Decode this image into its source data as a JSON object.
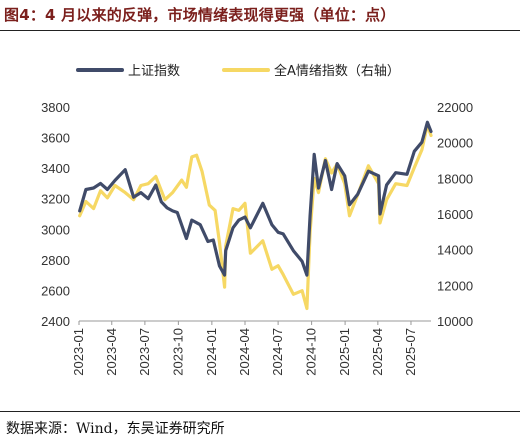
{
  "title": "图4：4 月以来的反弹，市场情绪表现得更强（单位：点）",
  "source": "数据来源：Wind，东吴证券研究所",
  "chart_data": {
    "type": "line",
    "title": "图4：4 月以来的反弹，市场情绪表现得更强（单位：点）",
    "xlabel": "",
    "ylabel": "",
    "x_ticks": [
      "2023-01",
      "2023-04",
      "2023-07",
      "2023-10",
      "2024-01",
      "2024-04",
      "2024-07",
      "2024-10",
      "2025-01",
      "2025-04",
      "2025-07"
    ],
    "x_range": [
      "2023-01-01",
      "2025-08-25"
    ],
    "y_left": {
      "lim": [
        2400,
        3800
      ],
      "ticks": [
        2400,
        2600,
        2800,
        3000,
        3200,
        3400,
        3600,
        3800
      ]
    },
    "y_right": {
      "lim": [
        10000,
        22000
      ],
      "ticks": [
        10000,
        12000,
        14000,
        16000,
        18000,
        20000,
        22000
      ]
    },
    "legend": {
      "position": "top"
    },
    "grid": false,
    "series": [
      {
        "name": "上证指数",
        "axis": "left",
        "color": "#404b69",
        "points": [
          [
            "2023-01-03",
            3120
          ],
          [
            "2023-01-20",
            3260
          ],
          [
            "2023-02-10",
            3270
          ],
          [
            "2023-03-01",
            3300
          ],
          [
            "2023-03-20",
            3260
          ],
          [
            "2023-04-10",
            3320
          ],
          [
            "2023-05-08",
            3390
          ],
          [
            "2023-05-31",
            3210
          ],
          [
            "2023-06-20",
            3240
          ],
          [
            "2023-07-10",
            3200
          ],
          [
            "2023-07-31",
            3290
          ],
          [
            "2023-08-15",
            3180
          ],
          [
            "2023-08-31",
            3140
          ],
          [
            "2023-09-15",
            3120
          ],
          [
            "2023-09-28",
            3110
          ],
          [
            "2023-10-23",
            2940
          ],
          [
            "2023-11-07",
            3060
          ],
          [
            "2023-11-30",
            3030
          ],
          [
            "2023-12-21",
            2920
          ],
          [
            "2024-01-05",
            2930
          ],
          [
            "2024-01-22",
            2760
          ],
          [
            "2024-02-05",
            2700
          ],
          [
            "2024-02-08",
            2860
          ],
          [
            "2024-02-28",
            3010
          ],
          [
            "2024-03-15",
            3060
          ],
          [
            "2024-04-01",
            3080
          ],
          [
            "2024-04-16",
            3010
          ],
          [
            "2024-05-20",
            3170
          ],
          [
            "2024-06-14",
            3030
          ],
          [
            "2024-07-01",
            2980
          ],
          [
            "2024-07-15",
            2970
          ],
          [
            "2024-08-12",
            2860
          ],
          [
            "2024-09-05",
            2790
          ],
          [
            "2024-09-18",
            2700
          ],
          [
            "2024-09-27",
            3090
          ],
          [
            "2024-10-08",
            3490
          ],
          [
            "2024-10-20",
            3270
          ],
          [
            "2024-11-08",
            3450
          ],
          [
            "2024-11-25",
            3260
          ],
          [
            "2024-12-10",
            3430
          ],
          [
            "2024-12-31",
            3350
          ],
          [
            "2025-01-13",
            3160
          ],
          [
            "2025-02-05",
            3230
          ],
          [
            "2025-03-06",
            3380
          ],
          [
            "2025-04-03",
            3350
          ],
          [
            "2025-04-07",
            3100
          ],
          [
            "2025-04-25",
            3290
          ],
          [
            "2025-05-20",
            3370
          ],
          [
            "2025-06-20",
            3360
          ],
          [
            "2025-07-10",
            3510
          ],
          [
            "2025-07-31",
            3570
          ],
          [
            "2025-08-15",
            3700
          ],
          [
            "2025-08-25",
            3640
          ]
        ]
      },
      {
        "name": "全A情绪指数（右轴）",
        "axis": "right",
        "color": "#f6d864",
        "points": [
          [
            "2023-01-03",
            15900
          ],
          [
            "2023-01-20",
            16700
          ],
          [
            "2023-02-10",
            16300
          ],
          [
            "2023-03-01",
            17300
          ],
          [
            "2023-03-20",
            16900
          ],
          [
            "2023-04-10",
            17600
          ],
          [
            "2023-05-08",
            17200
          ],
          [
            "2023-05-31",
            16800
          ],
          [
            "2023-06-20",
            17600
          ],
          [
            "2023-07-10",
            17700
          ],
          [
            "2023-07-31",
            18100
          ],
          [
            "2023-08-25",
            16800
          ],
          [
            "2023-09-15",
            17200
          ],
          [
            "2023-10-10",
            17900
          ],
          [
            "2023-10-23",
            17500
          ],
          [
            "2023-11-07",
            19200
          ],
          [
            "2023-11-20",
            19300
          ],
          [
            "2023-12-05",
            18400
          ],
          [
            "2023-12-25",
            16500
          ],
          [
            "2024-01-10",
            16200
          ],
          [
            "2024-01-22",
            14400
          ],
          [
            "2024-02-05",
            11900
          ],
          [
            "2024-02-08",
            14200
          ],
          [
            "2024-02-28",
            16300
          ],
          [
            "2024-03-15",
            16200
          ],
          [
            "2024-04-01",
            16600
          ],
          [
            "2024-04-16",
            13800
          ],
          [
            "2024-05-20",
            14500
          ],
          [
            "2024-06-14",
            12900
          ],
          [
            "2024-07-01",
            13100
          ],
          [
            "2024-07-15",
            12600
          ],
          [
            "2024-08-12",
            11500
          ],
          [
            "2024-09-05",
            11700
          ],
          [
            "2024-09-18",
            10700
          ],
          [
            "2024-09-27",
            15000
          ],
          [
            "2024-10-08",
            18000
          ],
          [
            "2024-10-20",
            17200
          ],
          [
            "2024-11-08",
            19100
          ],
          [
            "2024-11-25",
            18300
          ],
          [
            "2024-12-10",
            18800
          ],
          [
            "2024-12-31",
            17700
          ],
          [
            "2025-01-13",
            15900
          ],
          [
            "2025-02-05",
            17100
          ],
          [
            "2025-03-06",
            18700
          ],
          [
            "2025-04-03",
            17700
          ],
          [
            "2025-04-07",
            15500
          ],
          [
            "2025-04-25",
            16800
          ],
          [
            "2025-05-20",
            17700
          ],
          [
            "2025-06-20",
            17600
          ],
          [
            "2025-07-10",
            18600
          ],
          [
            "2025-07-31",
            19600
          ],
          [
            "2025-08-15",
            21000
          ],
          [
            "2025-08-25",
            20400
          ]
        ]
      }
    ]
  }
}
